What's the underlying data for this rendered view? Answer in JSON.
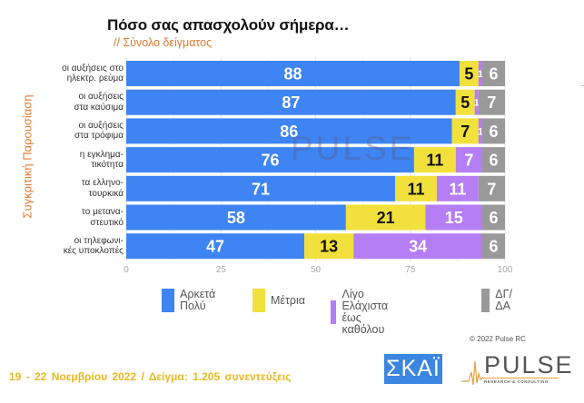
{
  "header": {
    "title": "Πόσο σας απασχολούν σήμερα…",
    "subtitle": "// Σύνολο δείγματος"
  },
  "footer": {
    "copyright": "© 2022 Pulse RC",
    "survey_info": "19 - 22  Νοεμβρίου  2022  /  Δείγμα:  1.205 συνεντεύξεις",
    "logos": {
      "skai": "ΣΚΑΪ",
      "pulse": "PULSE",
      "pulse_sub": "RESEARCH & CONSULTING"
    }
  },
  "colors": {
    "blue": "#3e84f3",
    "yellow": "#f2e13c",
    "purple": "#b57ef5",
    "gray": "#999999",
    "orange": "#e07a2e",
    "footer_yellow": "#e8b820"
  },
  "chart_data": {
    "type": "bar",
    "orientation": "horizontal",
    "stacked": true,
    "title": "Πόσο σας απασχολούν σήμερα…",
    "subtitle": "// Σύνολο δείγματος",
    "ylabel": "Συγκριτική Παρουσίαση",
    "xlabel": "",
    "xlim": [
      0,
      100
    ],
    "xticks": [
      "0",
      "25",
      "50",
      "75",
      "100"
    ],
    "grid": true,
    "legend_position": "bottom",
    "categories": [
      [
        "οι αυξήσεις στο",
        "ηλεκτρ. ρεύμα"
      ],
      [
        "οι αυξήσεις",
        "στα καύσιμα"
      ],
      [
        "οι αυξήσεις",
        "στα τρόφιμα"
      ],
      [
        "η εγκλημα-",
        "τικότητα"
      ],
      [
        "τα ελληνο-",
        "τουρκικά"
      ],
      [
        "το μετανα-",
        "στευτικό"
      ],
      [
        "οι τηλεφωνι-",
        "κές υποκλοπές"
      ]
    ],
    "series": [
      {
        "name": [
          "Αρκετά",
          "Πολύ"
        ],
        "color": "#3e84f3",
        "label_color": "#ffffff",
        "values": [
          88,
          87,
          86,
          76,
          71,
          58,
          47
        ]
      },
      {
        "name": [
          "Μέτρια"
        ],
        "color": "#f2e13c",
        "label_color": "#111111",
        "values": [
          5,
          5,
          7,
          11,
          11,
          21,
          13
        ]
      },
      {
        "name": [
          "Λίγο",
          "Ελάχιστα έως καθόλου"
        ],
        "color": "#b57ef5",
        "label_color": "#ffffff",
        "values": [
          1,
          1,
          1,
          7,
          11,
          15,
          34
        ]
      },
      {
        "name": [
          "ΔΓ/ΔΑ"
        ],
        "color": "#999999",
        "label_color": "#ffffff",
        "values": [
          6,
          7,
          6,
          6,
          7,
          6,
          6
        ]
      }
    ],
    "watermark": "PULSE"
  }
}
